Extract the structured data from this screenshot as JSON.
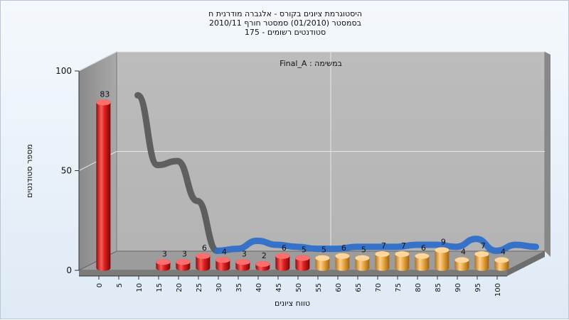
{
  "chart_data": {
    "type": "bar",
    "title": [
      "היסטוגרמת ציונים בקורס - אלגברה מודרנית ח",
      "בסמסטר  (01/2010)  סמסטר חורף  2010/11",
      "סטודנטים רשומים - 175"
    ],
    "annotation": "Final_A : במשימה",
    "xlabel": "טווח ציונים",
    "ylabel": "מספר סטודנטים",
    "ylim": [
      0,
      100
    ],
    "yticks": [
      0,
      50,
      100
    ],
    "categories": [
      "0",
      "5",
      "10",
      "15",
      "20",
      "25",
      "30",
      "35",
      "40",
      "45",
      "50",
      "55",
      "60",
      "65",
      "70",
      "75",
      "80",
      "85",
      "90",
      "95",
      "100"
    ],
    "values": [
      83,
      null,
      null,
      3,
      3,
      6,
      4,
      3,
      2,
      6,
      5,
      5,
      6,
      5,
      7,
      7,
      6,
      9,
      4,
      7,
      4
    ],
    "series_colors": {
      "fail": "#d81e1e",
      "pass": "#e8a844"
    },
    "fail_below": 55,
    "grid": true,
    "overlay_lines": [
      {
        "color": "#5a5a5a",
        "x": [
          "5",
          "10",
          "15",
          "20",
          "25"
        ],
        "y": [
          83,
          48,
          50,
          30,
          5
        ]
      },
      {
        "color": "#2f6fc8",
        "x": [
          "25",
          "30",
          "35",
          "40",
          "45",
          "50",
          "55",
          "60",
          "65",
          "70",
          "75",
          "80",
          "85",
          "90",
          "95",
          "100",
          "100+"
        ],
        "y": [
          5,
          6,
          10,
          8,
          7,
          6,
          6,
          7,
          7,
          7,
          8,
          8,
          7,
          11,
          5,
          8,
          7
        ]
      }
    ]
  }
}
